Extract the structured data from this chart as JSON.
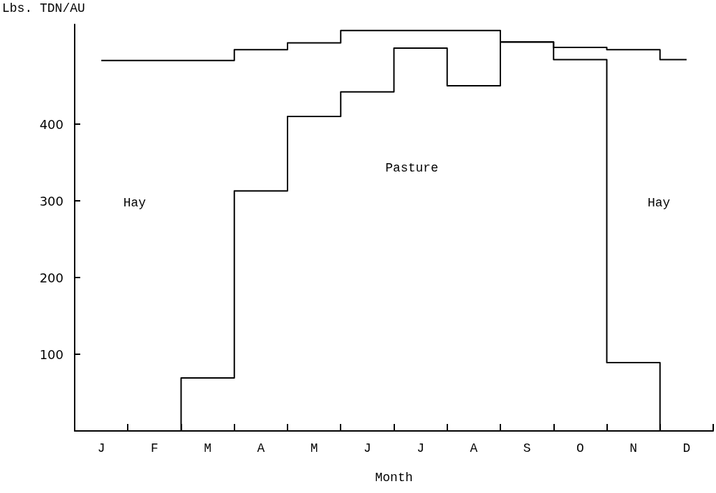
{
  "chart_data": {
    "type": "step",
    "xlabel": "Month",
    "ylabel": "Lbs. TDN/AU",
    "categories": [
      "J",
      "F",
      "M",
      "A",
      "M",
      "J",
      "J",
      "A",
      "S",
      "O",
      "N",
      "D"
    ],
    "series": [
      {
        "color": "#000000",
        "values": [
          483,
          483,
          483,
          497,
          506,
          522,
          522,
          522,
          507,
          500,
          497,
          484
        ]
      },
      {
        "color": "#000000",
        "values": [
          0,
          0,
          69,
          313,
          410,
          442,
          499,
          450,
          507,
          484,
          89,
          0
        ]
      }
    ],
    "ylim": [
      0,
      530
    ],
    "yticks": [
      100,
      200,
      300,
      400
    ],
    "annotations": [
      "Hay",
      "Pasture",
      "Hay"
    ],
    "grid": false,
    "marker": "none",
    "line_style": "solid"
  }
}
